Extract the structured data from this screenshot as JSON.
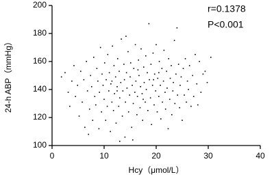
{
  "chart_data": {
    "type": "scatter",
    "x_label": "Hcy（μmol/L）",
    "y_label": "24-h ABP（mmHg）",
    "annotations": [
      "r=0.1378",
      "P<0.001"
    ],
    "color": "#000000",
    "xlim": [
      0,
      40
    ],
    "xticks": [
      0,
      10,
      20,
      30,
      40
    ],
    "ylim": [
      100,
      200
    ],
    "yticks": [
      100,
      120,
      140,
      160,
      180,
      200
    ],
    "grid": false,
    "x": [
      1.8,
      2.5,
      3.1,
      3.4,
      3.8,
      4.2,
      4.5,
      4.9,
      5.2,
      5.5,
      5.8,
      6.1,
      6.3,
      6.6,
      6.8,
      7.0,
      7.2,
      7.4,
      7.6,
      7.8,
      8.0,
      8.2,
      8.4,
      8.6,
      8.8,
      9.0,
      9.1,
      9.3,
      9.5,
      9.6,
      9.8,
      10.0,
      10.1,
      10.3,
      10.4,
      10.6,
      10.7,
      10.9,
      11.0,
      11.2,
      11.3,
      11.5,
      11.6,
      11.8,
      11.9,
      12.0,
      12.2,
      12.3,
      12.5,
      12.6,
      12.8,
      12.9,
      13.0,
      13.2,
      13.3,
      13.5,
      13.6,
      13.8,
      13.9,
      14.0,
      14.1,
      14.3,
      14.4,
      14.6,
      14.7,
      14.9,
      15.0,
      15.1,
      15.3,
      15.4,
      15.6,
      15.7,
      15.9,
      16.0,
      16.1,
      16.3,
      16.4,
      16.6,
      16.7,
      16.9,
      17.0,
      17.1,
      17.3,
      17.4,
      17.6,
      17.7,
      17.9,
      18.0,
      18.1,
      18.3,
      18.4,
      18.6,
      18.7,
      18.9,
      19.0,
      19.1,
      19.3,
      19.4,
      19.6,
      19.7,
      19.9,
      20.0,
      20.2,
      20.3,
      20.5,
      20.6,
      20.8,
      20.9,
      21.1,
      21.2,
      21.4,
      21.5,
      21.7,
      21.8,
      22.0,
      22.1,
      22.3,
      22.4,
      22.6,
      22.7,
      22.9,
      23.0,
      23.2,
      23.3,
      23.5,
      23.6,
      23.8,
      24.0,
      24.1,
      24.3,
      24.5,
      24.6,
      24.8,
      25.0,
      25.2,
      25.4,
      25.6,
      25.8,
      26.0,
      26.2,
      26.4,
      26.7,
      27.0,
      27.2,
      27.5,
      27.8,
      28.0,
      28.3,
      28.6,
      29.0,
      29.4,
      29.8,
      30.5,
      13.0,
      14.2,
      15.5,
      11.5,
      16.5,
      17.5,
      19.5,
      12.5,
      20.5
    ],
    "values": [
      149,
      152,
      138,
      128,
      146,
      157,
      135,
      143,
      121,
      153,
      131,
      147,
      113,
      160,
      139,
      108,
      126,
      150,
      142,
      118,
      163,
      135,
      129,
      155,
      146,
      112,
      138,
      170,
      124,
      151,
      143,
      133,
      159,
      118,
      147,
      128,
      165,
      139,
      152,
      110,
      144,
      131,
      171,
      125,
      157,
      137,
      149,
      116,
      142,
      162,
      128,
      153,
      134,
      145,
      176,
      121,
      139,
      158,
      147,
      106,
      131,
      152,
      141,
      167,
      124,
      136,
      149,
      159,
      113,
      143,
      130,
      155,
      138,
      172,
      146,
      122,
      135,
      161,
      150,
      127,
      142,
      169,
      137,
      118,
      156,
      145,
      131,
      164,
      140,
      152,
      125,
      187,
      147,
      134,
      158,
      115,
      143,
      166,
      129,
      151,
      139,
      172,
      124,
      148,
      135,
      160,
      143,
      119,
      155,
      131,
      146,
      168,
      138,
      126,
      153,
      141,
      112,
      162,
      133,
      148,
      157,
      122,
      139,
      145,
      175,
      130,
      151,
      184,
      136,
      158,
      127,
      143,
      149,
      118,
      155,
      136,
      162,
      131,
      146,
      140,
      157,
      128,
      150,
      135,
      165,
      144,
      129,
      160,
      138,
      151,
      153,
      145,
      163,
      103,
      178,
      104,
      146,
      154,
      133,
      147,
      139,
      152
    ]
  }
}
